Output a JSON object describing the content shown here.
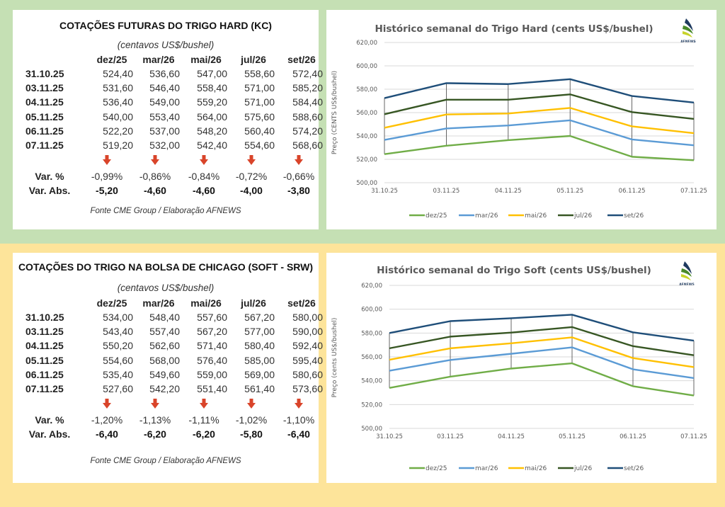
{
  "hard_table": {
    "title": "COTAÇÕES FUTURAS DO TRIGO HARD (KC)",
    "subtitle": "(centavos US$/bushel)",
    "columns": [
      "dez/25",
      "mar/26",
      "mai/26",
      "jul/26",
      "set/26"
    ],
    "rows": [
      {
        "date": "31.10.25",
        "values": [
          "524,40",
          "536,60",
          "547,00",
          "558,60",
          "572,40"
        ]
      },
      {
        "date": "03.11.25",
        "values": [
          "531,60",
          "546,40",
          "558,40",
          "571,00",
          "585,20"
        ]
      },
      {
        "date": "04.11.25",
        "values": [
          "536,40",
          "549,00",
          "559,20",
          "571,00",
          "584,40"
        ]
      },
      {
        "date": "05.11.25",
        "values": [
          "540,00",
          "553,40",
          "564,00",
          "575,60",
          "588,60"
        ]
      },
      {
        "date": "06.11.25",
        "values": [
          "522,20",
          "537,00",
          "548,20",
          "560,40",
          "574,20"
        ]
      },
      {
        "date": "07.11.25",
        "values": [
          "519,20",
          "532,00",
          "542,40",
          "554,60",
          "568,60"
        ]
      }
    ],
    "trend_icons": [
      "arrow-down-icon",
      "arrow-down-icon",
      "arrow-down-icon",
      "arrow-down-icon",
      "arrow-down-icon"
    ],
    "var_pct_label": "Var. %",
    "var_pct": [
      "-0,99%",
      "-0,86%",
      "-0,84%",
      "-0,72%",
      "-0,66%"
    ],
    "var_abs_label": "Var. Abs.",
    "var_abs": [
      "-5,20",
      "-4,60",
      "-4,60",
      "-4,00",
      "-3,80"
    ],
    "source": "Fonte CME Group / Elaboração AFNEWS"
  },
  "soft_table": {
    "title": "COTAÇÕES DO TRIGO NA BOLSA DE CHICAGO (SOFT - SRW)",
    "subtitle": "(centavos US$/bushel)",
    "columns": [
      "dez/25",
      "mar/26",
      "mai/26",
      "jul/26",
      "set/26"
    ],
    "rows": [
      {
        "date": "31.10.25",
        "values": [
          "534,00",
          "548,40",
          "557,60",
          "567,20",
          "580,00"
        ]
      },
      {
        "date": "03.11.25",
        "values": [
          "543,40",
          "557,40",
          "567,20",
          "577,00",
          "590,00"
        ]
      },
      {
        "date": "04.11.25",
        "values": [
          "550,20",
          "562,60",
          "571,40",
          "580,40",
          "592,40"
        ]
      },
      {
        "date": "05.11.25",
        "values": [
          "554,60",
          "568,00",
          "576,40",
          "585,00",
          "595,40"
        ]
      },
      {
        "date": "06.11.25",
        "values": [
          "535,40",
          "549,60",
          "559,00",
          "569,00",
          "580,60"
        ]
      },
      {
        "date": "07.11.25",
        "values": [
          "527,60",
          "542,20",
          "551,40",
          "561,40",
          "573,60"
        ]
      }
    ],
    "trend_icons": [
      "arrow-down-icon",
      "arrow-down-icon",
      "arrow-down-icon",
      "arrow-down-icon",
      "arrow-down-icon"
    ],
    "var_pct_label": "Var. %",
    "var_pct": [
      "-1,20%",
      "-1,13%",
      "-1,11%",
      "-1,02%",
      "-1,10%"
    ],
    "var_abs_label": "Var. Abs.",
    "var_abs": [
      "-6,40",
      "-6,20",
      "-6,20",
      "-5,80",
      "-6,40"
    ],
    "source": "Fonte CME Group / Elaboração AFNEWS"
  },
  "colors": {
    "top_band": "#c5e0b4",
    "bottom_band": "#fde49a",
    "arrow_down": "#d9442a",
    "series": [
      "#70ad47",
      "#5b9bd5",
      "#ffc000",
      "#375623",
      "#1f4e79"
    ]
  },
  "logo": {
    "text": "AFNEWS",
    "side_text": "AGRÍCOLA"
  },
  "chart_data": [
    {
      "type": "line",
      "title": "Histórico semanal do Trigo Hard (cents US$/bushel)",
      "xlabel": "",
      "ylabel": "Preço (CENTS US$/bushel)",
      "categories": [
        "31.10.25",
        "03.11.25",
        "04.11.25",
        "05.11.25",
        "06.11.25",
        "07.11.25"
      ],
      "ylim": [
        500,
        620
      ],
      "yticks": [
        "500,00",
        "520,00",
        "540,00",
        "560,00",
        "580,00",
        "600,00",
        "620,00"
      ],
      "grid": true,
      "high_low_lines": true,
      "legend": "bottom",
      "series": [
        {
          "name": "dez/25",
          "values": [
            524.4,
            531.6,
            536.4,
            540.0,
            522.2,
            519.2
          ]
        },
        {
          "name": "mar/26",
          "values": [
            536.6,
            546.4,
            549.0,
            553.4,
            537.0,
            532.0
          ]
        },
        {
          "name": "mai/26",
          "values": [
            547.0,
            558.4,
            559.2,
            564.0,
            548.2,
            542.4
          ]
        },
        {
          "name": "jul/26",
          "values": [
            558.6,
            571.0,
            571.0,
            575.6,
            560.4,
            554.6
          ]
        },
        {
          "name": "set/26",
          "values": [
            572.4,
            585.2,
            584.4,
            588.6,
            574.2,
            568.6
          ]
        }
      ]
    },
    {
      "type": "line",
      "title": "Histórico semanal do Trigo Soft (cents US$/bushel)",
      "xlabel": "",
      "ylabel": "Preço (cents US$/bushel)",
      "categories": [
        "31.10.25",
        "03.11.25",
        "04.11.25",
        "05.11.25",
        "06.11.25",
        "07.11.25"
      ],
      "ylim": [
        500,
        620
      ],
      "yticks": [
        "500,00",
        "520,00",
        "540,00",
        "560,00",
        "580,00",
        "600,00",
        "620,00"
      ],
      "grid": true,
      "high_low_lines": true,
      "legend": "bottom",
      "series": [
        {
          "name": "dez/25",
          "values": [
            534.0,
            543.4,
            550.2,
            554.6,
            535.4,
            527.6
          ]
        },
        {
          "name": "mar/26",
          "values": [
            548.4,
            557.4,
            562.6,
            568.0,
            549.6,
            542.2
          ]
        },
        {
          "name": "mai/26",
          "values": [
            557.6,
            567.2,
            571.4,
            576.4,
            559.0,
            551.4
          ]
        },
        {
          "name": "jul/26",
          "values": [
            567.2,
            577.0,
            580.4,
            585.0,
            569.0,
            561.4
          ]
        },
        {
          "name": "set/26",
          "values": [
            580.0,
            590.0,
            592.4,
            595.4,
            580.6,
            573.6
          ]
        }
      ]
    }
  ]
}
